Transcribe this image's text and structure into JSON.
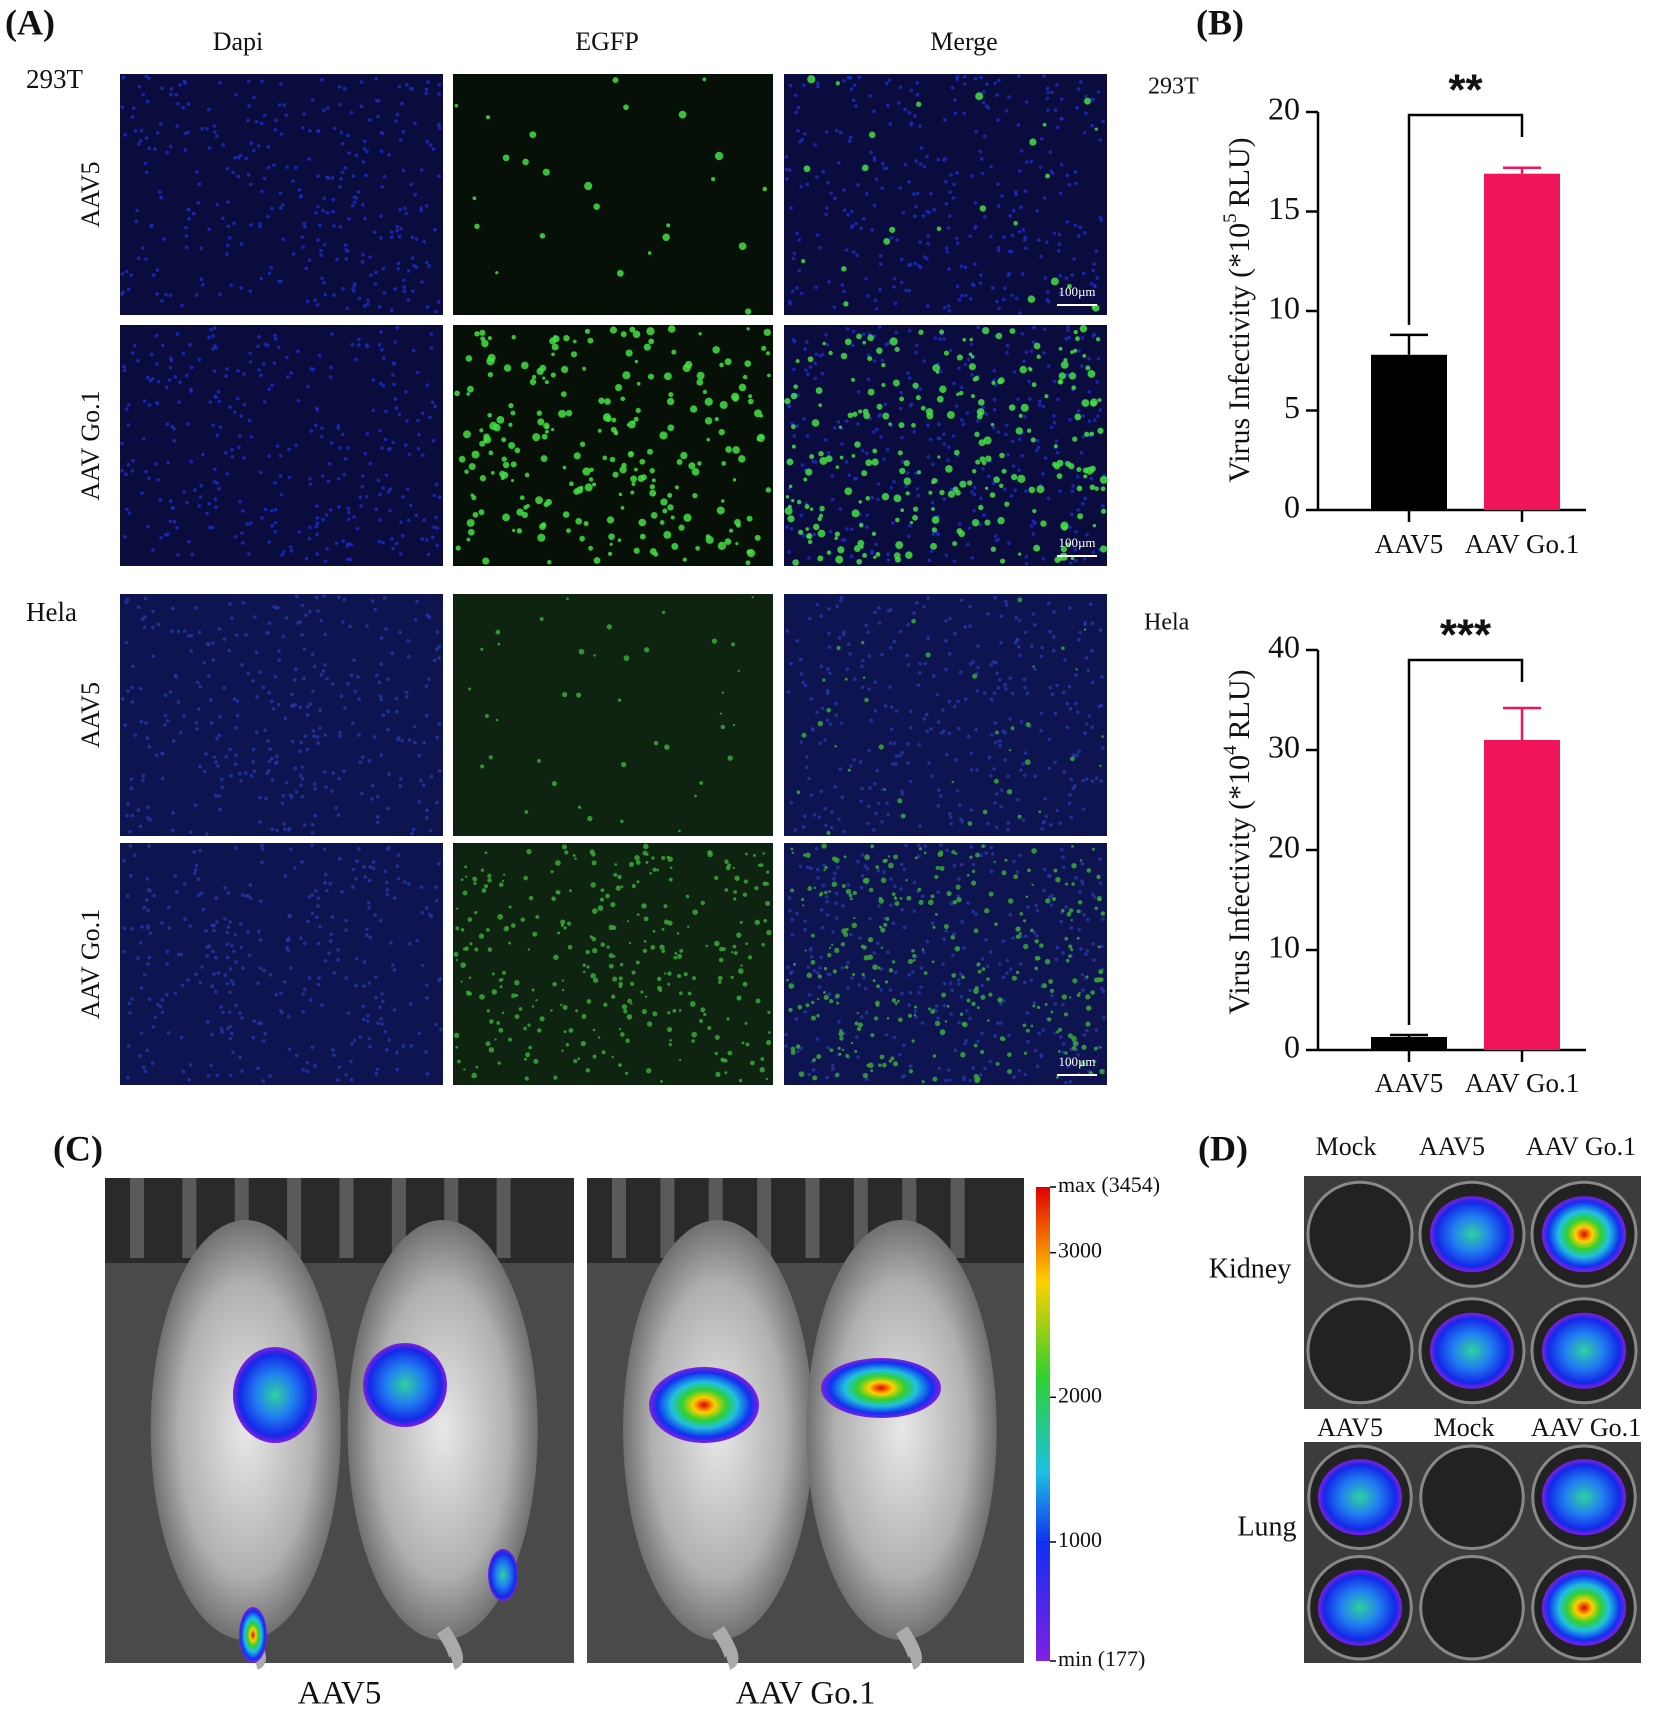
{
  "panel_labels": [
    "(A)",
    "(B)",
    "(C)",
    "(D)"
  ],
  "panel_a": {
    "columns": [
      "Dapi",
      "EGFP",
      "Merge"
    ],
    "groups": [
      {
        "cell_line": "293T",
        "rows": [
          "AAV5",
          "AAV Go.1"
        ]
      },
      {
        "cell_line": "Hela",
        "rows": [
          "AAV5",
          "AAV Go.1"
        ]
      }
    ],
    "scale_bar": "100µm"
  },
  "chart_data": [
    {
      "type": "bar",
      "title": "293T",
      "y_label": [
        "Virus Infectivity (*10",
        "5",
        "RLU)"
      ],
      "categories": [
        "AAV5",
        "AAV Go.1"
      ],
      "values": [
        7.8,
        16.9
      ],
      "errors": [
        1.0,
        0.3
      ],
      "colors": [
        "#000000",
        "#f0145a"
      ],
      "ylim": [
        0,
        20
      ],
      "yticks": [
        0,
        5,
        10,
        15,
        20
      ],
      "significance": "**"
    },
    {
      "type": "bar",
      "title": "Hela",
      "y_label": [
        "Virus Infectivity (*10",
        "4",
        "RLU)"
      ],
      "categories": [
        "AAV5",
        "AAV Go.1"
      ],
      "values": [
        1.3,
        31
      ],
      "errors": [
        0.2,
        3.2
      ],
      "colors": [
        "#000000",
        "#f0145a"
      ],
      "ylim": [
        0,
        40
      ],
      "yticks": [
        0,
        10,
        20,
        30,
        40
      ],
      "significance": "***"
    }
  ],
  "panel_c": {
    "groups": [
      "AAV5",
      "AAV Go.1"
    ],
    "colorbar": {
      "clim": [
        177,
        3454
      ],
      "ticks": [
        {
          "value": 177,
          "label": "min (177)"
        },
        1000,
        2000,
        3000,
        {
          "value": 3454,
          "label": "max (3454)"
        }
      ]
    }
  },
  "panel_d": {
    "kidney": {
      "label": "Kidney",
      "columns": [
        "Mock",
        "AAV5",
        "AAV Go.1"
      ]
    },
    "lung": {
      "label": "Lung",
      "columns": [
        "AAV5",
        "Mock",
        "AAV Go.1"
      ]
    }
  }
}
